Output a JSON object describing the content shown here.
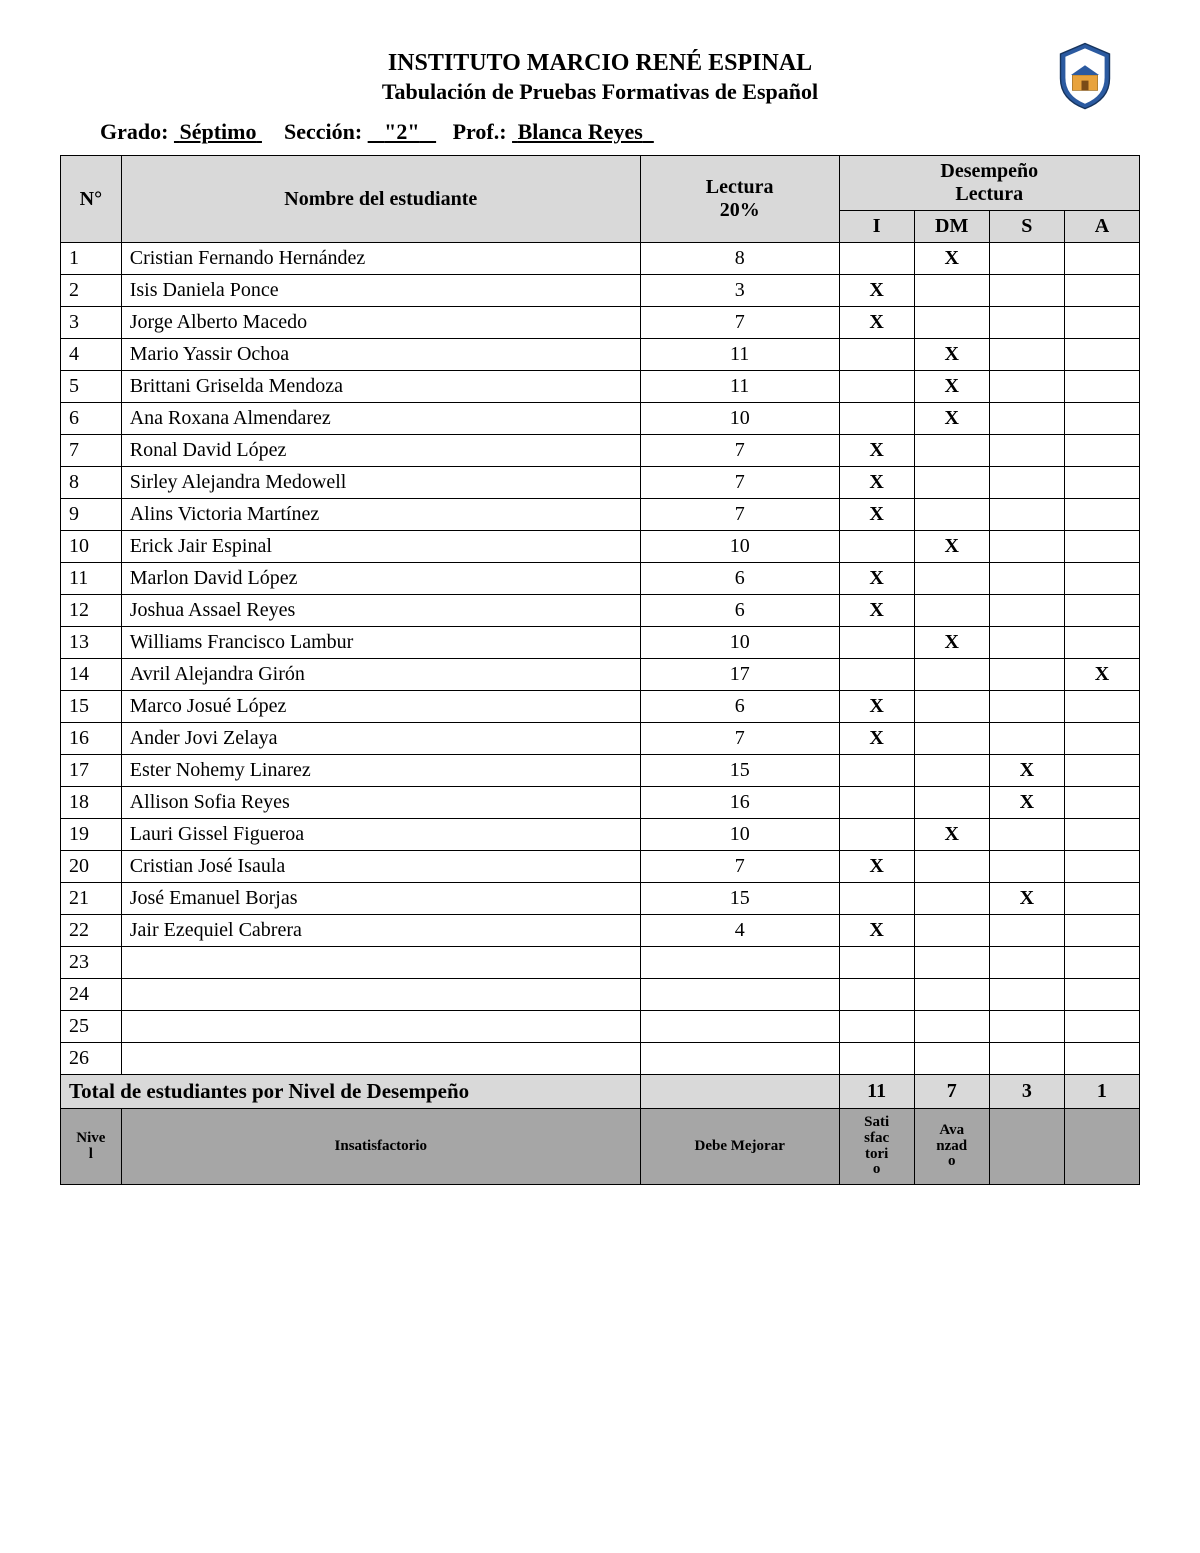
{
  "header": {
    "institution": "INSTITUTO MARCIO RENÉ ESPINAL",
    "subtitle": "Tabulación de Pruebas Formativas de Español",
    "grade_label": "Grado:",
    "grade_value": "Séptimo",
    "section_label": "Sección:",
    "section_value": "\"2\"",
    "prof_label": "Prof.:",
    "prof_value": "Blanca Reyes"
  },
  "columns": {
    "n": "N°",
    "nombre": "Nombre del estudiante",
    "lectura_line1": "Lectura",
    "lectura_line2": "20%",
    "desempeno_line1": "Desempeño",
    "desempeno_line2": "Lectura",
    "d_I": "I",
    "d_DM": "DM",
    "d_S": "S",
    "d_A": "A"
  },
  "rows": [
    {
      "n": "1",
      "name": "Cristian Fernando Hernández",
      "lec": "8",
      "I": "",
      "DM": "X",
      "S": "",
      "A": ""
    },
    {
      "n": "2",
      "name": "Isis Daniela Ponce",
      "lec": "3",
      "I": "X",
      "DM": "",
      "S": "",
      "A": ""
    },
    {
      "n": "3",
      "name": "Jorge Alberto Macedo",
      "lec": "7",
      "I": "X",
      "DM": "",
      "S": "",
      "A": ""
    },
    {
      "n": "4",
      "name": "Mario Yassir Ochoa",
      "lec": "11",
      "I": "",
      "DM": "X",
      "S": "",
      "A": ""
    },
    {
      "n": "5",
      "name": "Brittani Griselda Mendoza",
      "lec": "11",
      "I": "",
      "DM": "X",
      "S": "",
      "A": ""
    },
    {
      "n": "6",
      "name": "Ana Roxana Almendarez",
      "lec": "10",
      "I": "",
      "DM": "X",
      "S": "",
      "A": ""
    },
    {
      "n": "7",
      "name": "Ronal David López",
      "lec": "7",
      "I": "X",
      "DM": "",
      "S": "",
      "A": ""
    },
    {
      "n": "8",
      "name": "Sirley Alejandra Medowell",
      "lec": "7",
      "I": "X",
      "DM": "",
      "S": "",
      "A": ""
    },
    {
      "n": "9",
      "name": "Alins Victoria Martínez",
      "lec": "7",
      "I": "X",
      "DM": "",
      "S": "",
      "A": ""
    },
    {
      "n": "10",
      "name": "Erick Jair Espinal",
      "lec": "10",
      "I": "",
      "DM": "X",
      "S": "",
      "A": ""
    },
    {
      "n": "11",
      "name": "Marlon David López",
      "lec": "6",
      "I": "X",
      "DM": "",
      "S": "",
      "A": ""
    },
    {
      "n": "12",
      "name": "Joshua Assael Reyes",
      "lec": "6",
      "I": "X",
      "DM": "",
      "S": "",
      "A": ""
    },
    {
      "n": "13",
      "name": "Williams Francisco Lambur",
      "lec": "10",
      "I": "",
      "DM": "X",
      "S": "",
      "A": ""
    },
    {
      "n": "14",
      "name": "Avril Alejandra Girón",
      "lec": "17",
      "I": "",
      "DM": "",
      "S": "",
      "A": "X"
    },
    {
      "n": "15",
      "name": "Marco Josué López",
      "lec": "6",
      "I": "X",
      "DM": "",
      "S": "",
      "A": ""
    },
    {
      "n": "16",
      "name": "Ander Jovi Zelaya",
      "lec": "7",
      "I": "X",
      "DM": "",
      "S": "",
      "A": ""
    },
    {
      "n": "17",
      "name": "Ester Nohemy Linarez",
      "lec": "15",
      "I": "",
      "DM": "",
      "S": "X",
      "A": ""
    },
    {
      "n": "18",
      "name": "Allison Sofia Reyes",
      "lec": "16",
      "I": "",
      "DM": "",
      "S": "X",
      "A": ""
    },
    {
      "n": "19",
      "name": "Lauri Gissel Figueroa",
      "lec": "10",
      "I": "",
      "DM": "X",
      "S": "",
      "A": ""
    },
    {
      "n": "20",
      "name": "Cristian José Isaula",
      "lec": "7",
      "I": "X",
      "DM": "",
      "S": "",
      "A": ""
    },
    {
      "n": "21",
      "name": "José Emanuel Borjas",
      "lec": "15",
      "I": "",
      "DM": "",
      "S": "X",
      "A": ""
    },
    {
      "n": "22",
      "name": "Jair Ezequiel Cabrera",
      "lec": "4",
      "I": "X",
      "DM": "",
      "S": "",
      "A": ""
    },
    {
      "n": "23",
      "name": "",
      "lec": "",
      "I": "",
      "DM": "",
      "S": "",
      "A": ""
    },
    {
      "n": "24",
      "name": "",
      "lec": "",
      "I": "",
      "DM": "",
      "S": "",
      "A": ""
    },
    {
      "n": "25",
      "name": "",
      "lec": "",
      "I": "",
      "DM": "",
      "S": "",
      "A": ""
    },
    {
      "n": "26",
      "name": "",
      "lec": "",
      "I": "",
      "DM": "",
      "S": "",
      "A": ""
    }
  ],
  "totals": {
    "label": "Total de estudiantes por Nivel de Desempeño",
    "lec": "",
    "I": "11",
    "DM": "7",
    "S": "3",
    "A": "1"
  },
  "legend": {
    "nivel": "Nivel",
    "insatisfactorio": "Insatisfactorio",
    "debe_mejorar": "Debe Mejorar",
    "satisfactorio": "Satisfactorio",
    "avanzado": "Avanzado",
    "blank": ""
  },
  "style": {
    "header_bg": "#d9d9d9",
    "legend_bg": "#a6a6a6",
    "border_color": "#000000",
    "text_color": "#000000",
    "page_bg": "#ffffff",
    "font_family": "Times New Roman",
    "title_fontsize_pt": 18,
    "body_fontsize_pt": 15
  }
}
